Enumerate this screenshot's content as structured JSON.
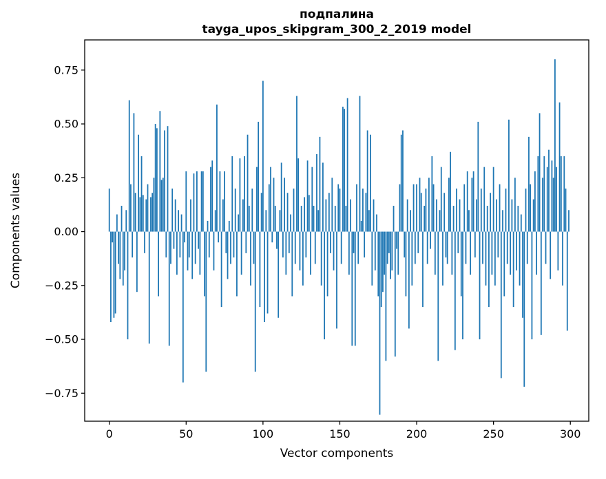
{
  "title": {
    "line1": "подпалина",
    "line2": "tayga_upos_skipgram_300_2_2019 model"
  },
  "chart_data": {
    "type": "bar",
    "title": "подпалина\ntayga_upos_skipgram_300_2_2019 model",
    "xlabel": "Vector components",
    "ylabel": "Components values",
    "xlim": [
      -16,
      312
    ],
    "ylim": [
      -0.88,
      0.89
    ],
    "xticks": [
      0,
      50,
      100,
      150,
      200,
      250,
      300
    ],
    "xtick_labels": [
      "0",
      "50",
      "100",
      "150",
      "200",
      "250",
      "300"
    ],
    "yticks": [
      -0.75,
      -0.5,
      -0.25,
      0,
      0.25,
      0.5,
      0.75
    ],
    "ytick_labels": [
      "−0.75",
      "−0.50",
      "−0.25",
      "0.00",
      "0.25",
      "0.50",
      "0.75"
    ],
    "bar_color": "#1f77b4",
    "grid": false,
    "legend": null,
    "values": [
      0.2,
      -0.42,
      -0.05,
      -0.4,
      -0.38,
      0.08,
      -0.15,
      -0.22,
      0.12,
      -0.25,
      -0.18,
      0.1,
      -0.5,
      0.61,
      0.22,
      -0.12,
      0.55,
      0.18,
      -0.28,
      0.45,
      0.16,
      0.35,
      0.17,
      -0.1,
      0.15,
      0.22,
      -0.52,
      0.16,
      0.18,
      0.25,
      0.5,
      0.48,
      -0.3,
      0.56,
      0.24,
      0.25,
      0.47,
      -0.12,
      0.49,
      -0.53,
      -0.15,
      0.2,
      -0.08,
      0.15,
      -0.2,
      0.1,
      -0.12,
      0.08,
      -0.7,
      -0.05,
      0.28,
      -0.18,
      -0.12,
      0.15,
      -0.22,
      0.27,
      -0.15,
      0.28,
      -0.08,
      -0.2,
      0.28,
      0.28,
      -0.3,
      -0.65,
      0.05,
      -0.12,
      0.3,
      0.33,
      -0.18,
      0.1,
      0.59,
      -0.05,
      0.28,
      -0.35,
      0.15,
      0.28,
      -0.1,
      -0.22,
      0.05,
      -0.15,
      0.35,
      -0.12,
      0.2,
      -0.3,
      0.08,
      0.34,
      -0.2,
      0.15,
      0.35,
      -0.1,
      0.45,
      0.12,
      -0.25,
      0.2,
      -0.15,
      -0.65,
      0.3,
      0.51,
      -0.35,
      0.18,
      0.7,
      -0.42,
      0.1,
      -0.38,
      0.22,
      0.3,
      -0.05,
      0.25,
      0.12,
      -0.08,
      -0.4,
      0.1,
      0.32,
      -0.12,
      0.25,
      -0.2,
      0.18,
      -0.1,
      0.08,
      -0.3,
      0.2,
      -0.15,
      0.63,
      0.34,
      -0.18,
      0.12,
      -0.25,
      0.16,
      -0.12,
      0.33,
      0.17,
      -0.2,
      0.3,
      0.12,
      -0.15,
      0.36,
      0.1,
      0.44,
      -0.25,
      0.32,
      -0.5,
      0.15,
      -0.3,
      0.18,
      -0.1,
      0.25,
      -0.18,
      0.12,
      -0.45,
      0.22,
      0.2,
      -0.15,
      0.58,
      0.57,
      0.12,
      0.62,
      -0.2,
      0.15,
      -0.53,
      -0.1,
      -0.53,
      0.22,
      -0.15,
      0.63,
      0.05,
      0.2,
      -0.12,
      0.18,
      0.47,
      0.1,
      0.45,
      -0.25,
      0.15,
      -0.18,
      0.08,
      -0.3,
      -0.85,
      -0.35,
      -0.28,
      -0.2,
      -0.6,
      -0.15,
      -0.1,
      -0.22,
      -0.18,
      0.12,
      -0.58,
      -0.08,
      -0.2,
      0.22,
      0.45,
      0.47,
      -0.12,
      -0.3,
      0.15,
      -0.45,
      0.1,
      -0.25,
      0.22,
      -0.15,
      0.22,
      -0.1,
      0.25,
      0.18,
      -0.35,
      0.12,
      0.2,
      -0.15,
      0.25,
      -0.08,
      0.35,
      0.22,
      -0.2,
      0.15,
      -0.6,
      0.1,
      0.3,
      -0.25,
      0.18,
      -0.12,
      -0.15,
      0.25,
      0.37,
      -0.2,
      0.12,
      -0.55,
      0.2,
      -0.1,
      0.15,
      -0.3,
      -0.5,
      0.22,
      -0.15,
      0.28,
      0.1,
      -0.2,
      0.25,
      0.28,
      -0.12,
      0.15,
      0.51,
      -0.5,
      0.2,
      -0.15,
      0.3,
      -0.25,
      0.12,
      -0.35,
      0.18,
      -0.2,
      0.3,
      -0.25,
      0.15,
      -0.12,
      0.22,
      -0.68,
      0.1,
      -0.3,
      0.2,
      -0.15,
      0.52,
      -0.2,
      0.15,
      -0.35,
      0.25,
      -0.18,
      0.12,
      -0.25,
      0.08,
      -0.4,
      -0.72,
      0.2,
      -0.15,
      0.44,
      0.22,
      -0.5,
      0.15,
      0.28,
      -0.2,
      0.35,
      0.55,
      -0.48,
      0.25,
      0.35,
      -0.15,
      0.3,
      0.38,
      -0.22,
      0.33,
      0.25,
      0.8,
      0.3,
      -0.18,
      0.6,
      0.35,
      -0.25,
      0.35,
      0.2,
      -0.46,
      0.1
    ]
  }
}
